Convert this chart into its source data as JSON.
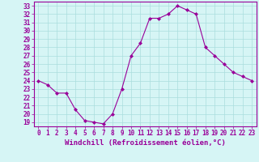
{
  "x": [
    0,
    1,
    2,
    3,
    4,
    5,
    6,
    7,
    8,
    9,
    10,
    11,
    12,
    13,
    14,
    15,
    16,
    17,
    18,
    19,
    20,
    21,
    22,
    23
  ],
  "y": [
    24.0,
    23.5,
    22.5,
    22.5,
    20.5,
    19.2,
    19.0,
    18.8,
    20.0,
    23.0,
    27.0,
    28.5,
    31.5,
    31.5,
    32.0,
    33.0,
    32.5,
    32.0,
    28.0,
    27.0,
    26.0,
    25.0,
    24.5,
    24.0
  ],
  "line_color": "#990099",
  "marker": "D",
  "markersize": 2,
  "bg_color": "#d6f5f5",
  "grid_color": "#aadddd",
  "xlabel": "Windchill (Refroidissement éolien,°C)",
  "ylabel_ticks": [
    19,
    20,
    21,
    22,
    23,
    24,
    25,
    26,
    27,
    28,
    29,
    30,
    31,
    32,
    33
  ],
  "xlim": [
    -0.5,
    23.5
  ],
  "ylim": [
    18.5,
    33.5
  ],
  "xticks": [
    0,
    1,
    2,
    3,
    4,
    5,
    6,
    7,
    8,
    9,
    10,
    11,
    12,
    13,
    14,
    15,
    16,
    17,
    18,
    19,
    20,
    21,
    22,
    23
  ],
  "tick_fontsize": 5.5,
  "xlabel_fontsize": 6.5
}
